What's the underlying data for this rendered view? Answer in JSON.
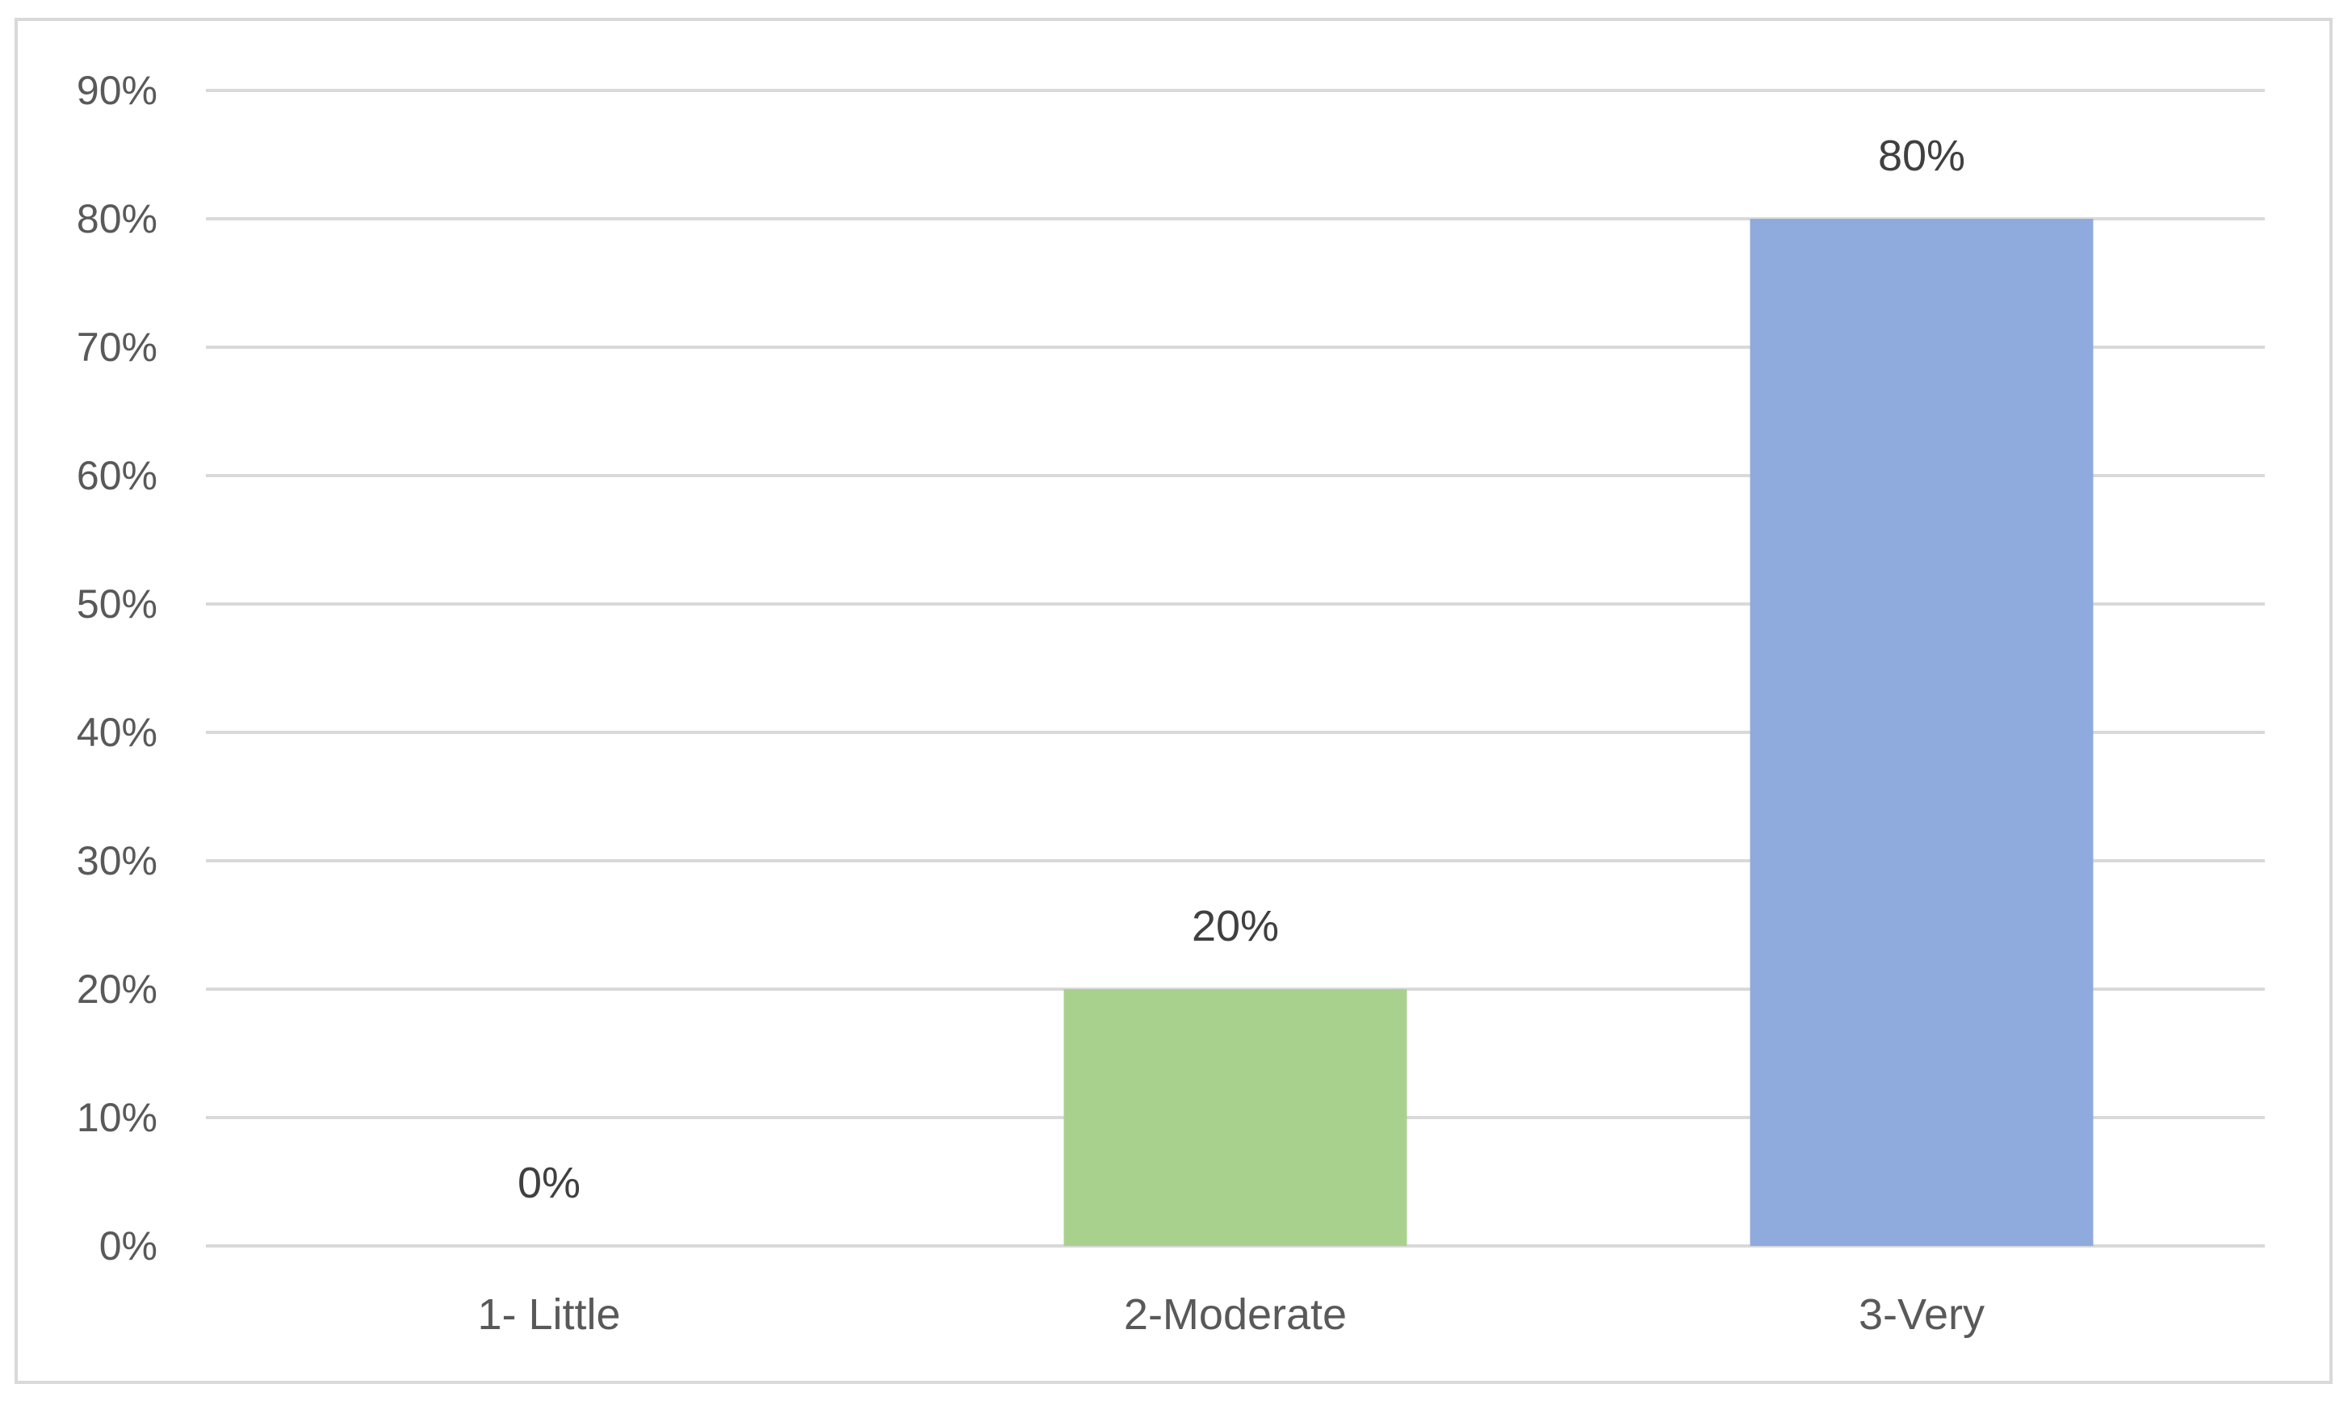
{
  "chart_data": {
    "type": "bar",
    "categories": [
      "1- Little",
      "2-Moderate",
      "3-Very"
    ],
    "values": [
      0,
      20,
      80
    ],
    "data_labels": [
      "0%",
      "20%",
      "80%"
    ],
    "bar_colors": [
      "#a9d18e",
      "#a9d18e",
      "#8faadc"
    ],
    "ylim": [
      0,
      90
    ],
    "yticks": [
      0,
      10,
      20,
      30,
      40,
      50,
      60,
      70,
      80,
      90
    ],
    "ytick_labels": [
      "0%",
      "10%",
      "20%",
      "30%",
      "40%",
      "50%",
      "60%",
      "70%",
      "80%",
      "90%"
    ],
    "grid": true,
    "gridline_color": "#d9d9d9",
    "legend": "none"
  }
}
